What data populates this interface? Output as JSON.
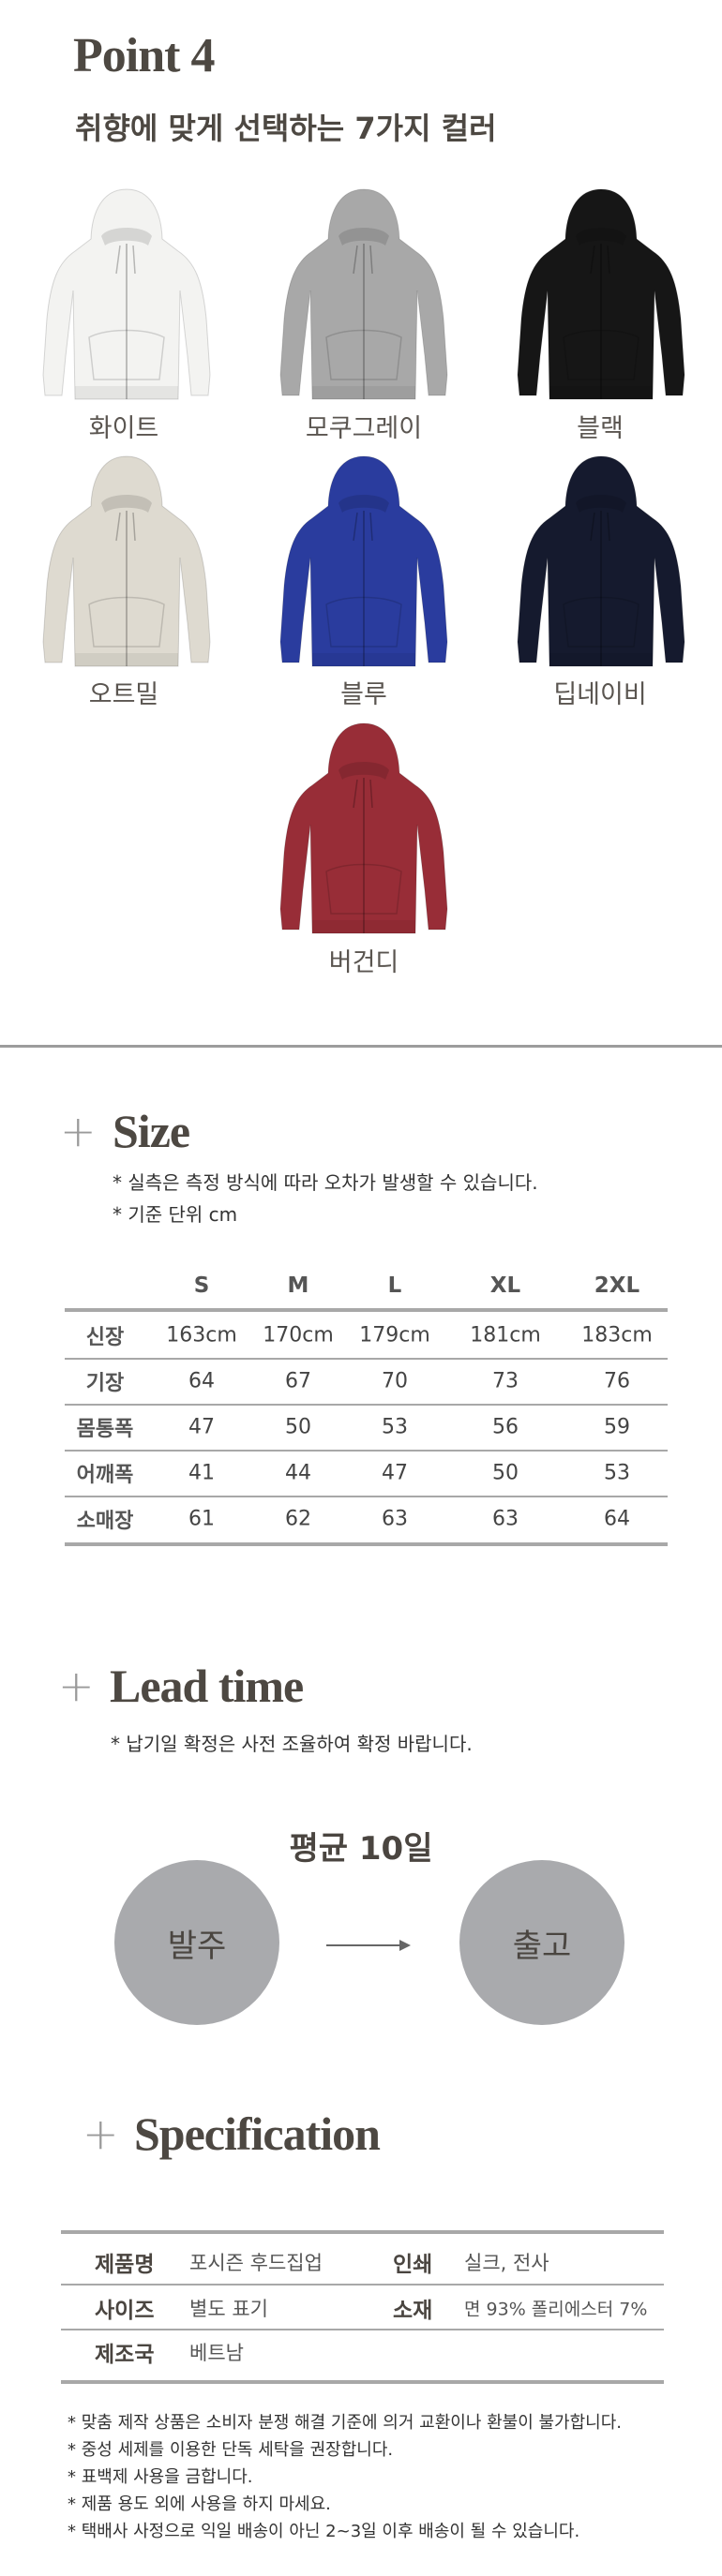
{
  "point": {
    "title": "Point 4",
    "subtitle": "취향에 맞게 선택하는 7가지 컬러",
    "colors": [
      {
        "label": "화이트",
        "hex": "#f3f3f1"
      },
      {
        "label": "모쿠그레이",
        "hex": "#a8a8a8"
      },
      {
        "label": "블랙",
        "hex": "#161616"
      },
      {
        "label": "오트밀",
        "hex": "#dedad0"
      },
      {
        "label": "블루",
        "hex": "#2a3c9e"
      },
      {
        "label": "딥네이비",
        "hex": "#151a2e"
      },
      {
        "label": "버건디",
        "hex": "#982d37"
      }
    ]
  },
  "size": {
    "title": "Size",
    "plus": "+",
    "notes": [
      "* 실측은 측정 방식에 따라 오차가 발생할 수 있습니다.",
      "* 기준 단위 cm"
    ],
    "columns": [
      "",
      "S",
      "M",
      "L",
      "XL",
      "2XL"
    ],
    "rows": [
      [
        "신장",
        "163cm",
        "170cm",
        "179cm",
        "181cm",
        "183cm"
      ],
      [
        "기장",
        "64",
        "67",
        "70",
        "73",
        "76"
      ],
      [
        "몸통폭",
        "47",
        "50",
        "53",
        "56",
        "59"
      ],
      [
        "어깨폭",
        "41",
        "44",
        "47",
        "50",
        "53"
      ],
      [
        "소매장",
        "61",
        "62",
        "63",
        "63",
        "64"
      ]
    ]
  },
  "lead": {
    "title": "Lead time",
    "plus": "+",
    "note": "* 납기일 확정은 사전 조율하여 확정 바랍니다.",
    "average": "평균 10일",
    "from": "발주",
    "to": "출고"
  },
  "spec": {
    "title": "Specification",
    "plus": "+",
    "rows": [
      {
        "label": "제품명",
        "value": "포시즌 후드집업",
        "label2": "인쇄",
        "value2": "실크, 전사"
      },
      {
        "label": "사이즈",
        "value": "별도 표기",
        "label2": "소재",
        "value2": "면 93% 폴리에스터 7%"
      },
      {
        "label": "제조국",
        "value": "베트남"
      }
    ],
    "notes": [
      "*  맞춤 제작 상품은 소비자 분쟁 해결 기준에 의거 교환이나 환불이 불가합니다.",
      "*  중성 세제를 이용한 단독 세탁을 권장합니다.",
      "*  표백제 사용을 금합니다.",
      "*  제품 용도 외에 사용을 하지 마세요.",
      "*  택배사 사정으로 익일 배송이 아닌 2~3일 이후 배송이 될 수 있습니다."
    ]
  }
}
